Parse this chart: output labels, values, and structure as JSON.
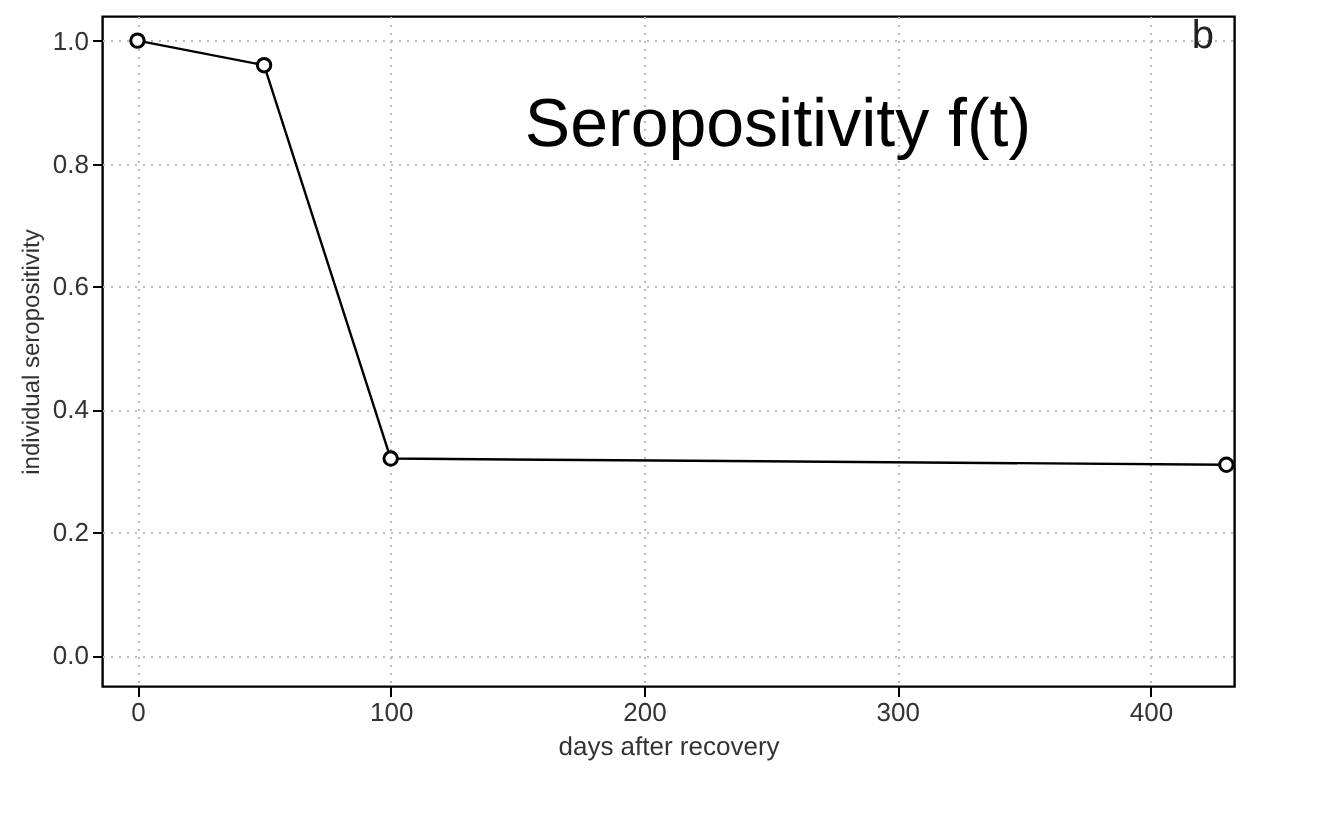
{
  "chart_data": {
    "type": "line",
    "title": "Seropositivity f(t)",
    "xlabel": "days after recovery",
    "ylabel": "individual seropositivity",
    "x": [
      0,
      50,
      100,
      430
    ],
    "series": [
      {
        "color": "#000000",
        "values": [
          1.0,
          0.96,
          0.32,
          0.31
        ]
      }
    ],
    "xlim": [
      -14,
      433
    ],
    "xticks": [
      0,
      100,
      200,
      300,
      400
    ],
    "ylim": [
      -0.05,
      1.04
    ],
    "yticks": [
      {
        "value": 0,
        "label": "0.0"
      },
      0.2,
      0.4,
      0.6,
      0.8,
      {
        "value": 1,
        "label": "1.0"
      }
    ],
    "grid": true,
    "marker": "circle",
    "line_style": "solid",
    "annotations": [
      "b"
    ]
  }
}
